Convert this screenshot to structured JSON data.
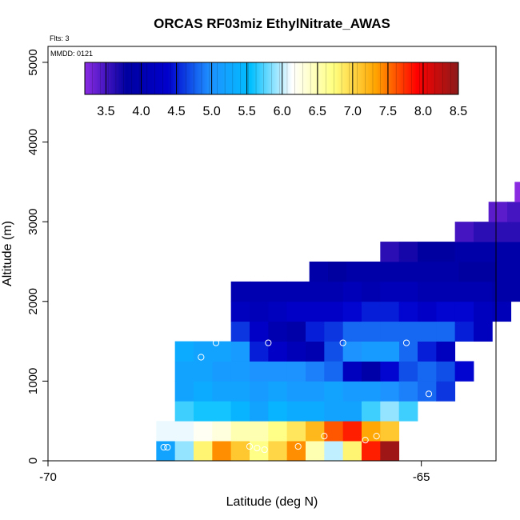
{
  "chart_data": {
    "type": "heatmap",
    "title": "ORCAS RF03miz EthylNitrate_AWAS",
    "flts_label": "Flts: 3",
    "mmdd_label": "MMDD: 0121",
    "xlabel": "Latitude (deg N)",
    "ylabel": "Altitude (m)",
    "xlim": [
      -70,
      -64
    ],
    "ylim": [
      0,
      5200
    ],
    "x_ticks": [
      {
        "value": -70,
        "label": "-70"
      },
      {
        "value": -65,
        "label": "-65"
      }
    ],
    "y_ticks": [
      {
        "value": 0,
        "label": "0"
      },
      {
        "value": 1000,
        "label": "1000"
      },
      {
        "value": 2000,
        "label": "2000"
      },
      {
        "value": 3000,
        "label": "3000"
      },
      {
        "value": 4000,
        "label": "4000"
      },
      {
        "value": 5000,
        "label": "5000"
      }
    ],
    "colorbar": {
      "min": 3.2,
      "max": 8.5,
      "ticks": [
        "3.5",
        "4.0",
        "4.5",
        "5.0",
        "5.5",
        "6.0",
        "6.5",
        "7.0",
        "7.5",
        "8.0",
        "8.5"
      ],
      "stops": [
        "#8a2be2",
        "#0000a0",
        "#0000cd",
        "#1e90ff",
        "#00bfff",
        "#ffffff",
        "#ffff80",
        "#ffa500",
        "#ff0000",
        "#8b1a1a"
      ]
    },
    "cell_width_deg": 0.25,
    "cell_height_m": 250,
    "rows": [
      {
        "altitude": 125,
        "lat_start": -68.55,
        "values": [
          5.2,
          5.9,
          6.8,
          7.4,
          7.1,
          6.7,
          7.0,
          7.4,
          6.5,
          6.0,
          6.8,
          7.8,
          8.4
        ]
      },
      {
        "altitude": 375,
        "lat_start": -68.55,
        "values": [
          6.1,
          6.1,
          6.2,
          6.3,
          6.5,
          6.5,
          6.7,
          6.9,
          7.2,
          7.6,
          7.8,
          7.3,
          7.1
        ]
      },
      {
        "altitude": 625,
        "lat_start": -68.3,
        "values": [
          5.7,
          5.6,
          5.6,
          5.4,
          5.2,
          5.4,
          5.3,
          5.3,
          5.2,
          5.2,
          5.7,
          5.9,
          5.7
        ]
      },
      {
        "altitude": 875,
        "lat_start": -68.3,
        "values": [
          5.2,
          5.3,
          5.2,
          5.2,
          5.1,
          5.2,
          5.1,
          5.1,
          5.2,
          5.1,
          5.1,
          5.0,
          4.9,
          4.8,
          4.6
        ]
      },
      {
        "altitude": 1125,
        "lat_start": -68.3,
        "values": [
          5.2,
          5.2,
          5.1,
          5.1,
          5.0,
          5.0,
          5.0,
          4.9,
          4.8,
          4.2,
          3.9,
          4.4,
          4.7,
          4.8,
          4.7,
          4.4
        ]
      },
      {
        "altitude": 1375,
        "lat_start": -68.3,
        "values": [
          5.3,
          5.2,
          5.2,
          5.1,
          5.0,
          5.0,
          5.0,
          5.1,
          5.1,
          5.1,
          4.9,
          5.0,
          4.8,
          4.5,
          4.2
        ]
      },
      {
        "altitude": 1375,
        "lat_start": -67.3,
        "values": [
          4.5,
          4.3,
          4.1,
          4.0,
          4.7,
          5.0,
          5.1,
          5.1
        ]
      },
      {
        "altitude": 1625,
        "lat_start": -67.55,
        "values": [
          4.6,
          4.3,
          4.0,
          3.9,
          4.5,
          4.6,
          4.8,
          4.8,
          4.8,
          4.8,
          4.8,
          4.8,
          4.5,
          4.2
        ]
      },
      {
        "altitude": 1875,
        "lat_start": -67.55,
        "values": [
          4.2,
          4.1,
          4.2,
          4.3,
          4.3,
          4.3,
          4.4,
          4.5,
          4.5,
          4.4,
          4.3,
          4.4,
          4.4,
          4.2,
          4.1
        ]
      },
      {
        "altitude": 2125,
        "lat_start": -67.55,
        "values": [
          4.0,
          4.0,
          4.0,
          4.0,
          4.0,
          4.0,
          4.1,
          4.0,
          4.1,
          4.1,
          4.0,
          4.0,
          4.0,
          4.0,
          3.9,
          3.9
        ]
      },
      {
        "altitude": 2375,
        "lat_start": -66.5,
        "values": [
          3.9,
          3.8,
          3.9,
          3.9,
          3.9,
          3.9,
          3.9,
          3.9,
          3.8,
          3.8,
          3.9,
          3.9
        ]
      },
      {
        "altitude": 2625,
        "lat_start": -65.55,
        "values": [
          3.6,
          3.7,
          3.8,
          3.8,
          3.9,
          3.9,
          3.9,
          3.9
        ]
      },
      {
        "altitude": 2875,
        "lat_start": -64.55,
        "values": [
          3.5,
          3.6,
          3.6,
          3.6,
          3.7
        ]
      },
      {
        "altitude": 3125,
        "lat_start": -64.1,
        "values": [
          3.4,
          3.5,
          3.6,
          3.7
        ]
      },
      {
        "altitude": 3375,
        "lat_start": -63.75,
        "values": [
          3.2
        ]
      }
    ],
    "samples": [
      {
        "lat": -68.45,
        "alt": 170
      },
      {
        "lat": -68.4,
        "alt": 170
      },
      {
        "lat": -67.3,
        "alt": 180
      },
      {
        "lat": -67.2,
        "alt": 160
      },
      {
        "lat": -67.1,
        "alt": 140
      },
      {
        "lat": -66.65,
        "alt": 180
      },
      {
        "lat": -66.3,
        "alt": 310
      },
      {
        "lat": -65.75,
        "alt": 260
      },
      {
        "lat": -65.6,
        "alt": 310
      },
      {
        "lat": -65.05,
        "alt": 250
      },
      {
        "lat": -64.9,
        "alt": 840
      },
      {
        "lat": -67.95,
        "alt": 1300
      },
      {
        "lat": -67.75,
        "alt": 1480
      },
      {
        "lat": -67.05,
        "alt": 1480
      },
      {
        "lat": -66.05,
        "alt": 1480
      },
      {
        "lat": -65.2,
        "alt": 1480
      },
      {
        "lat": -67.9,
        "alt": 2230
      },
      {
        "lat": -64.7,
        "alt": 3230
      }
    ]
  }
}
